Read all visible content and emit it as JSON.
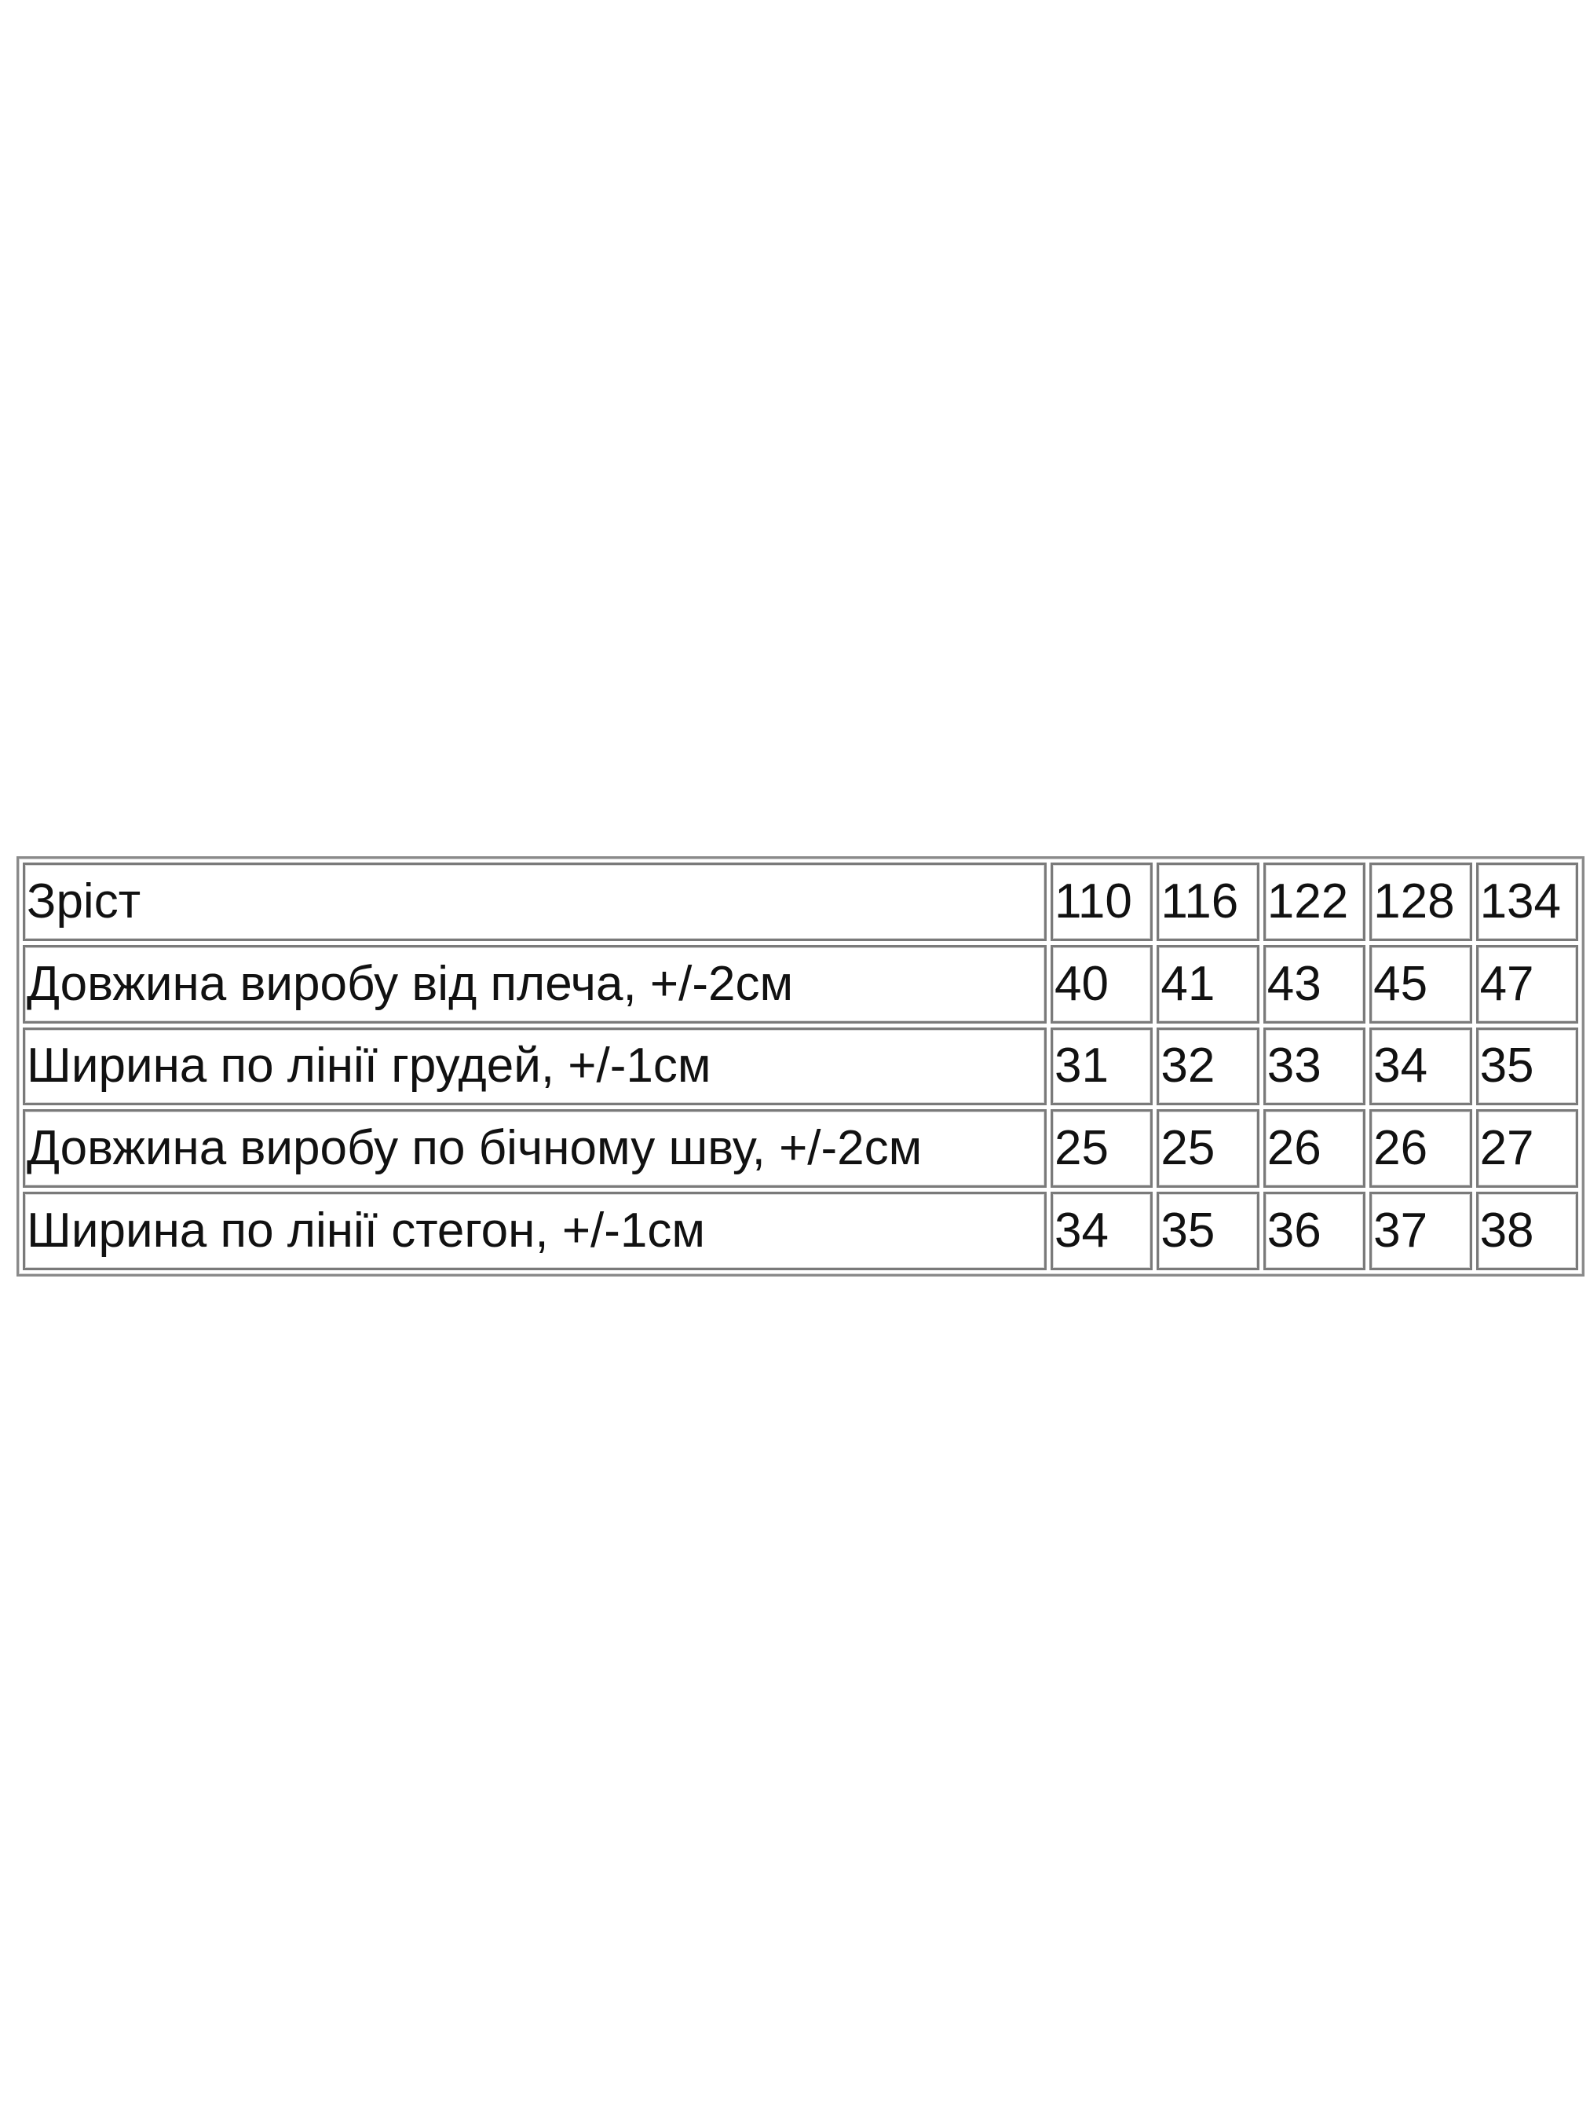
{
  "table": {
    "rows": [
      [
        "Зріст",
        110,
        116,
        122,
        128,
        134
      ],
      [
        "Довжина виробу від плеча, +/-2см",
        40,
        41,
        43,
        45,
        47
      ],
      [
        "Ширина по лінії грудей, +/-1см",
        31,
        32,
        33,
        34,
        35
      ],
      [
        "Довжина виробу по бічному шву, +/-2см",
        25,
        25,
        26,
        26,
        27
      ],
      [
        "Ширина по лінії стегон, +/-1см",
        34,
        35,
        36,
        37,
        38
      ]
    ]
  }
}
